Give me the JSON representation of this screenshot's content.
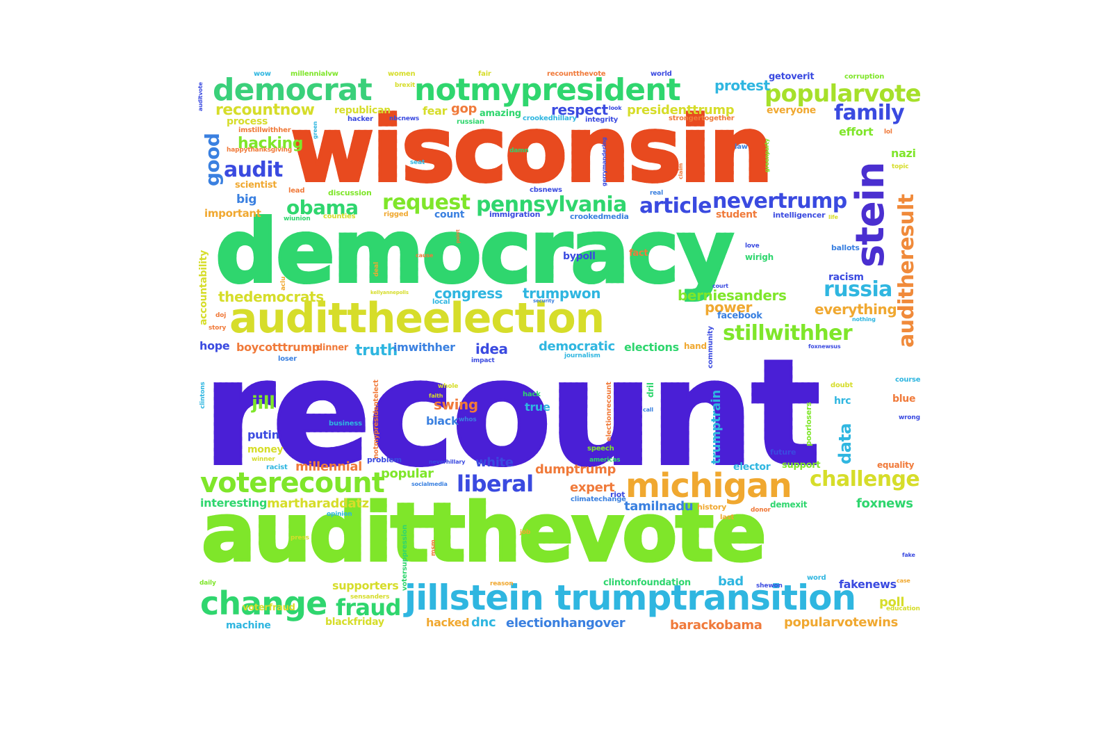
{
  "words": [
    {
      "text": "recount",
      "color": "#4a1fd6"
    },
    {
      "text": "wisconsin",
      "color": "#e84a1f"
    },
    {
      "text": "democracy",
      "color": "#2fd66e"
    },
    {
      "text": "auditthevote",
      "color": "#7fe62a"
    },
    {
      "text": "audittheelection",
      "color": "#d6dd2a"
    },
    {
      "text": "jillstein trumptransition",
      "color": "#2fb6e0"
    },
    {
      "text": "notmypresident",
      "color": "#2fd66e"
    },
    {
      "text": "democrat",
      "color": "#3ad07a"
    },
    {
      "text": "popularvote",
      "color": "#a6e02a"
    },
    {
      "text": "michigan",
      "color": "#f0a830"
    },
    {
      "text": "voterecount",
      "color": "#7fe62a"
    },
    {
      "text": "change",
      "color": "#2fd66e"
    },
    {
      "text": "stein",
      "color": "#4a2fd0"
    },
    {
      "text": "auditheresult",
      "color": "#f08a3a"
    },
    {
      "text": "pennsylvania",
      "color": "#2fd66e"
    },
    {
      "text": "nevertrump",
      "color": "#3a4ae0"
    },
    {
      "text": "request",
      "color": "#7fe62a"
    },
    {
      "text": "obama",
      "color": "#2fd66e"
    },
    {
      "text": "article",
      "color": "#3a4ae0"
    },
    {
      "text": "russia",
      "color": "#2fb6e0"
    },
    {
      "text": "stillwithher",
      "color": "#7fe62a"
    },
    {
      "text": "challenge",
      "color": "#d6dd2a"
    },
    {
      "text": "family",
      "color": "#3a4ae0"
    },
    {
      "text": "recountnow",
      "color": "#d6dd2a"
    },
    {
      "text": "audit",
      "color": "#3a4ae0"
    },
    {
      "text": "good",
      "color": "#3a80e0"
    },
    {
      "text": "hacking",
      "color": "#7fe62a"
    },
    {
      "text": "fraud",
      "color": "#2fd66e"
    },
    {
      "text": "liberal",
      "color": "#3a4ae0"
    },
    {
      "text": "protest",
      "color": "#2fb6e0"
    },
    {
      "text": "respect",
      "color": "#3a4ae0"
    },
    {
      "text": "presidenttrump",
      "color": "#d6dd2a"
    },
    {
      "text": "thedemocrats",
      "color": "#d6dd2a"
    },
    {
      "text": "berniesanders",
      "color": "#7fe62a"
    },
    {
      "text": "everything",
      "color": "#f0a830"
    },
    {
      "text": "power",
      "color": "#f0a830"
    },
    {
      "text": "congress",
      "color": "#2fb6e0"
    },
    {
      "text": "trumpwon",
      "color": "#2fb6e0"
    },
    {
      "text": "truth",
      "color": "#2fb6e0"
    },
    {
      "text": "boycotttrump",
      "color": "#f07a3a"
    },
    {
      "text": "imwithher",
      "color": "#3a80e0"
    },
    {
      "text": "idea",
      "color": "#3a4ae0"
    },
    {
      "text": "democratic",
      "color": "#2fb6e0"
    },
    {
      "text": "elections",
      "color": "#2fd66e"
    },
    {
      "text": "hope",
      "color": "#3a4ae0"
    },
    {
      "text": "dinner",
      "color": "#f07a3a"
    },
    {
      "text": "jill",
      "color": "#7fe62a"
    },
    {
      "text": "swing",
      "color": "#f07a3a"
    },
    {
      "text": "black",
      "color": "#3a80e0"
    },
    {
      "text": "true",
      "color": "#2fb6e0"
    },
    {
      "text": "putin",
      "color": "#3a4ae0"
    },
    {
      "text": "money",
      "color": "#d6dd2a"
    },
    {
      "text": "millennial",
      "color": "#f07a3a"
    },
    {
      "text": "white",
      "color": "#3a4ae0"
    },
    {
      "text": "dumptrump",
      "color": "#f07a3a"
    },
    {
      "text": "expert",
      "color": "#f07a3a"
    },
    {
      "text": "popular",
      "color": "#7fe62a"
    },
    {
      "text": "tamilnadu",
      "color": "#3a80e0"
    },
    {
      "text": "interesting",
      "color": "#2fd66e"
    },
    {
      "text": "martharaddatz",
      "color": "#d6dd2a"
    },
    {
      "text": "foxnews",
      "color": "#2fd66e"
    },
    {
      "text": "supporters",
      "color": "#d6dd2a"
    },
    {
      "text": "bad",
      "color": "#2fb6e0"
    },
    {
      "text": "fakenews",
      "color": "#3a4ae0"
    },
    {
      "text": "voterfraud",
      "color": "#d6dd2a"
    },
    {
      "text": "machine",
      "color": "#2fb6e0"
    },
    {
      "text": "blackfriday",
      "color": "#d6dd2a"
    },
    {
      "text": "hacked",
      "color": "#f0a830"
    },
    {
      "text": "dnc",
      "color": "#2fb6e0"
    },
    {
      "text": "electionhangover",
      "color": "#3a80e0"
    },
    {
      "text": "barackobama",
      "color": "#f07a3a"
    },
    {
      "text": "popularvotewins",
      "color": "#f0a830"
    },
    {
      "text": "poll",
      "color": "#d6dd2a"
    },
    {
      "text": "clintonfoundation",
      "color": "#2fd66e"
    },
    {
      "text": "getoverit",
      "color": "#3a4ae0"
    },
    {
      "text": "corruption",
      "color": "#7fe62a"
    },
    {
      "text": "everyone",
      "color": "#f0a830"
    },
    {
      "text": "effort",
      "color": "#7fe62a"
    },
    {
      "text": "nazi",
      "color": "#7fe62a"
    },
    {
      "text": "gop",
      "color": "#f07a3a"
    },
    {
      "text": "fear",
      "color": "#d6dd2a"
    },
    {
      "text": "republican",
      "color": "#d6dd2a"
    },
    {
      "text": "amazing",
      "color": "#2fd66e"
    },
    {
      "text": "process",
      "color": "#d6dd2a"
    },
    {
      "text": "scientist",
      "color": "#f0a830"
    },
    {
      "text": "big",
      "color": "#3a80e0"
    },
    {
      "text": "important",
      "color": "#f0a830"
    },
    {
      "text": "count",
      "color": "#3a80e0"
    },
    {
      "text": "student",
      "color": "#f07a3a"
    },
    {
      "text": "bypoll",
      "color": "#3a4ae0"
    },
    {
      "text": "fact",
      "color": "#f07a3a"
    },
    {
      "text": "racism",
      "color": "#3a4ae0"
    },
    {
      "text": "facebook",
      "color": "#3a80e0"
    },
    {
      "text": "data",
      "color": "#2fb6e0"
    },
    {
      "text": "trumptrain",
      "color": "#2fb6e0"
    },
    {
      "text": "hrc",
      "color": "#2fb6e0"
    },
    {
      "text": "blue",
      "color": "#f07a3a"
    },
    {
      "text": "elector",
      "color": "#2fb6e0"
    },
    {
      "text": "support",
      "color": "#7fe62a"
    },
    {
      "text": "equality",
      "color": "#f07a3a"
    },
    {
      "text": "accountability",
      "color": "#d6dd2a"
    },
    {
      "text": "wirigh",
      "color": "#2fd66e"
    },
    {
      "text": "immigration",
      "color": "#3a4ae0"
    },
    {
      "text": "intelligencer",
      "color": "#3a4ae0"
    },
    {
      "text": "crookedmedia",
      "color": "#3a80e0"
    },
    {
      "text": "wow",
      "color": "#2fb6e0"
    },
    {
      "text": "millennialvw",
      "color": "#7fe62a"
    },
    {
      "text": "women",
      "color": "#d6dd2a"
    },
    {
      "text": "fair",
      "color": "#d6dd2a"
    },
    {
      "text": "recountthevote",
      "color": "#f07a3a"
    },
    {
      "text": "world",
      "color": "#3a4ae0"
    },
    {
      "text": "hacker",
      "color": "#3a4ae0"
    },
    {
      "text": "russian",
      "color": "#2fd66e"
    },
    {
      "text": "crookedhillary",
      "color": "#2fb6e0"
    },
    {
      "text": "integrity",
      "color": "#3a4ae0"
    },
    {
      "text": "strongertogether",
      "color": "#f07a3a"
    },
    {
      "text": "imstillwithher",
      "color": "#f07a3a"
    },
    {
      "text": "happythanksgiving",
      "color": "#f07a3a"
    },
    {
      "text": "discussion",
      "color": "#7fe62a"
    },
    {
      "text": "rigged",
      "color": "#f0a830"
    },
    {
      "text": "counties",
      "color": "#d6dd2a"
    },
    {
      "text": "wiunion",
      "color": "#2fd66e"
    },
    {
      "text": "lead",
      "color": "#f07a3a"
    },
    {
      "text": "cbsnews",
      "color": "#3a4ae0"
    },
    {
      "text": "real",
      "color": "#3a80e0"
    },
    {
      "text": "ballots",
      "color": "#3a80e0"
    },
    {
      "text": "love",
      "color": "#3a4ae0"
    },
    {
      "text": "local",
      "color": "#2fb6e0"
    },
    {
      "text": "doubt",
      "color": "#d6dd2a"
    },
    {
      "text": "course",
      "color": "#2fb6e0"
    },
    {
      "text": "wrong",
      "color": "#3a4ae0"
    },
    {
      "text": "future",
      "color": "#3a4ae0"
    },
    {
      "text": "problem",
      "color": "#3a4ae0"
    },
    {
      "text": "business",
      "color": "#2fb6e0"
    },
    {
      "text": "winner",
      "color": "#d6dd2a"
    },
    {
      "text": "racist",
      "color": "#2fb6e0"
    },
    {
      "text": "speech",
      "color": "#7fe62a"
    },
    {
      "text": "americas",
      "color": "#2fd66e"
    },
    {
      "text": "riot",
      "color": "#3a4ae0"
    },
    {
      "text": "history",
      "color": "#f0a830"
    },
    {
      "text": "demexit",
      "color": "#2fd66e"
    },
    {
      "text": "donor",
      "color": "#f07a3a"
    },
    {
      "text": "last",
      "color": "#f0a830"
    },
    {
      "text": "climatechange",
      "color": "#3a80e0"
    },
    {
      "text": "word",
      "color": "#2fb6e0"
    },
    {
      "text": "shewon",
      "color": "#3a4ae0"
    },
    {
      "text": "education",
      "color": "#d6dd2a"
    },
    {
      "text": "daily",
      "color": "#7fe62a"
    },
    {
      "text": "sensanders",
      "color": "#d6dd2a"
    },
    {
      "text": "press",
      "color": "#d6dd2a"
    },
    {
      "text": "opinion",
      "color": "#2fb6e0"
    },
    {
      "text": "job",
      "color": "#f0a830"
    },
    {
      "text": "reason",
      "color": "#f0a830"
    },
    {
      "text": "hand",
      "color": "#f0a830"
    },
    {
      "text": "journalism",
      "color": "#2fb6e0"
    },
    {
      "text": "impact",
      "color": "#3a4ae0"
    },
    {
      "text": "loser",
      "color": "#3a80e0"
    },
    {
      "text": "whole",
      "color": "#d6dd2a"
    },
    {
      "text": "faith",
      "color": "#d6dd2a"
    },
    {
      "text": "hack",
      "color": "#2fd66e"
    },
    {
      "text": "whos",
      "color": "#3a80e0"
    },
    {
      "text": "neverhillary",
      "color": "#3a4ae0"
    },
    {
      "text": "socialmedia",
      "color": "#3a80e0"
    },
    {
      "text": "call",
      "color": "#3a80e0"
    },
    {
      "text": "foxnewsus",
      "color": "#3a4ae0"
    },
    {
      "text": "nothing",
      "color": "#2fb6e0"
    },
    {
      "text": "court",
      "color": "#3a4ae0"
    },
    {
      "text": "security",
      "color": "#3a80e0"
    },
    {
      "text": "kellyannepolls",
      "color": "#d6dd2a"
    },
    {
      "text": "story",
      "color": "#f07a3a"
    },
    {
      "text": "doj",
      "color": "#f07a3a"
    },
    {
      "text": "topic",
      "color": "#d6dd2a"
    },
    {
      "text": "lol",
      "color": "#f07a3a"
    },
    {
      "text": "life",
      "color": "#d6dd2a"
    },
    {
      "text": "claim",
      "color": "#f07a3a"
    },
    {
      "text": "seat",
      "color": "#2fb6e0"
    },
    {
      "text": "damn",
      "color": "#2fd66e"
    },
    {
      "text": "law",
      "color": "#3a80e0"
    },
    {
      "text": "brexit",
      "color": "#d6dd2a"
    },
    {
      "text": "nbcnews",
      "color": "#3a4ae0"
    },
    {
      "text": "look",
      "color": "#3a4ae0"
    },
    {
      "text": "cause",
      "color": "#f07a3a"
    },
    {
      "text": "point",
      "color": "#f07a3a"
    },
    {
      "text": "clintons",
      "color": "#2fb6e0"
    },
    {
      "text": "fake",
      "color": "#3a4ae0"
    },
    {
      "text": "case",
      "color": "#f0a830"
    },
    {
      "text": "green",
      "color": "#2fb6e0"
    },
    {
      "text": "aclu",
      "color": "#f0a830"
    },
    {
      "text": "deal",
      "color": "#f0a830"
    },
    {
      "text": "auditvote",
      "color": "#3a4ae0"
    },
    {
      "text": "greenparty",
      "color": "#7fe62a"
    },
    {
      "text": "gerrymandering",
      "color": "#3a4ae0"
    },
    {
      "text": "community",
      "color": "#3a4ae0"
    },
    {
      "text": "dril",
      "color": "#2fd66e"
    },
    {
      "text": "electionrecount",
      "color": "#f07a3a"
    },
    {
      "text": "poorlosers",
      "color": "#7fe62a"
    },
    {
      "text": "notmypresidentelect",
      "color": "#f07a3a"
    },
    {
      "text": "votersuppression",
      "color": "#2fd66e"
    },
    {
      "text": "msm",
      "color": "#f07a3a"
    }
  ]
}
